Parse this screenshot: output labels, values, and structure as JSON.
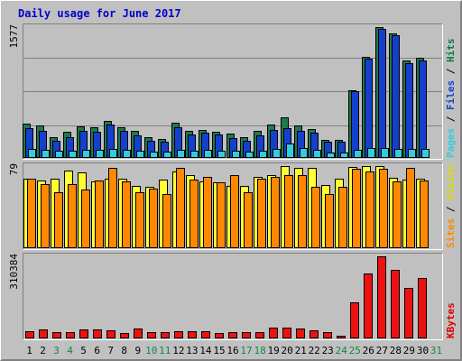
{
  "chart_data": {
    "type": "bar",
    "title": "Daily usage for June 2017",
    "x": [
      "1",
      "2",
      "3",
      "4",
      "5",
      "6",
      "7",
      "8",
      "9",
      "10",
      "11",
      "12",
      "13",
      "14",
      "15",
      "16",
      "17",
      "18",
      "19",
      "20",
      "21",
      "22",
      "23",
      "24",
      "25",
      "26",
      "27",
      "28",
      "29",
      "30",
      "31"
    ],
    "weekend_days": [
      "3",
      "4",
      "10",
      "11",
      "17",
      "18",
      "24",
      "25",
      "31"
    ],
    "panels": [
      {
        "name": "top",
        "max_label": "1577",
        "ymax": 1577,
        "legend": [
          {
            "text": "Pages",
            "color": "#33ccdd"
          },
          {
            "text": " / ",
            "color": "#000000"
          },
          {
            "text": "Files",
            "color": "#1144cc"
          },
          {
            "text": " / ",
            "color": "#000000"
          },
          {
            "text": "Hits",
            "color": "#117744"
          }
        ],
        "series": [
          {
            "name": "Hits",
            "color": "#1e7a4a",
            "values": [
              414,
              390,
              250,
              310,
              380,
              365,
              450,
              370,
              330,
              250,
              230,
              420,
              330,
              340,
              320,
              290,
              250,
              325,
              400,
              490,
              390,
              350,
              220,
              220,
              815,
              1220,
              1577,
              1500,
              1170,
              1212,
              null
            ]
          },
          {
            "name": "Files",
            "color": "#1540cc",
            "values": [
              360,
              330,
              210,
              250,
              330,
              320,
              400,
              330,
              270,
              210,
              200,
              375,
              280,
              300,
              280,
              240,
              210,
              270,
              340,
              360,
              330,
              300,
              200,
              200,
              800,
              1200,
              1560,
              1480,
              1140,
              1180,
              null
            ]
          },
          {
            "name": "Pages",
            "color": "#33ccdd",
            "values": [
              112,
              100,
              85,
              92,
              100,
              98,
              112,
              98,
              92,
              75,
              73,
              100,
              90,
              94,
              90,
              82,
              75,
              92,
              110,
              175,
              115,
              102,
              70,
              70,
              100,
              115,
              115,
              112,
              108,
              105,
              null
            ]
          }
        ]
      },
      {
        "name": "middle",
        "max_label": "79",
        "ymax": 79,
        "legend": [
          {
            "text": "Sites",
            "color": "#ff8800"
          },
          {
            "text": " / ",
            "color": "#000000"
          },
          {
            "text": "Visits",
            "color": "#dddd00"
          }
        ],
        "series": [
          {
            "name": "Visits",
            "color": "#ffff33",
            "values": [
              67,
              65,
              67,
              75,
              73,
              64,
              67,
              67,
              60,
              59,
              66,
              74,
              70,
              64,
              63,
              60,
              60,
              69,
              70,
              79,
              77,
              77,
              61,
              67,
              78,
              79,
              79,
              68,
              66,
              67,
              null
            ]
          },
          {
            "name": "Sites",
            "color": "#ff8800",
            "values": [
              67,
              62,
              54,
              62,
              56,
              65,
              77,
              64,
              54,
              57,
              52,
              77,
              66,
              69,
              63,
              70,
              54,
              67,
              69,
              70,
              70,
              59,
              52,
              59,
              76,
              74,
              76,
              64,
              77,
              65,
              null
            ]
          }
        ]
      },
      {
        "name": "bottom",
        "max_label": "310384",
        "ymax": 310384,
        "legend": [
          {
            "text": "KBytes",
            "color": "#dd0000"
          }
        ],
        "series": [
          {
            "name": "KBytes",
            "color": "#ee1111",
            "values": [
              27000,
              35000,
              25000,
              25000,
              33000,
              33000,
              31000,
              20000,
              38000,
              25000,
              25000,
              28000,
              26000,
              27000,
              21000,
              23000,
              25000,
              25000,
              42000,
              40000,
              38000,
              31000,
              23000,
              10000,
              136000,
              247000,
              310384,
              259000,
              190000,
              228000,
              null
            ]
          }
        ]
      }
    ]
  }
}
